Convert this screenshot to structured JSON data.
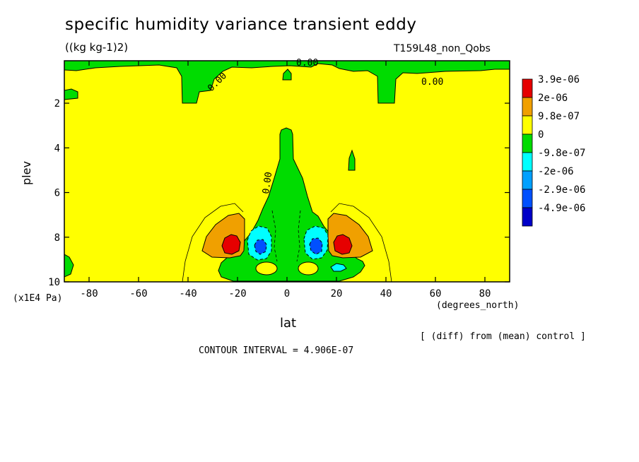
{
  "title": "specific humidity variance transient eddy",
  "units": "((kg kg-1)2)",
  "run_label": "T159L48_non_Qobs",
  "diff_note": "[ (diff) from (mean) control ]",
  "contour_interval": "CONTOUR INTERVAL = 4.906E-07",
  "chart_data": {
    "type": "contour",
    "xlabel": "lat",
    "xunit": "(degrees_north)",
    "ylabel": "plev",
    "yunit": "(x1E4 Pa)",
    "xlim": [
      -90,
      90
    ],
    "ylim": [
      10,
      0.1
    ],
    "x_ticks": [
      -80,
      -60,
      -40,
      -20,
      0,
      20,
      40,
      60,
      80
    ],
    "x_tick_labels": [
      "-80",
      "-60",
      "-40",
      "-20",
      "0",
      "20",
      "40",
      "60",
      "80"
    ],
    "y_ticks": [
      2,
      4,
      6,
      8,
      10
    ],
    "y_tick_labels": [
      "2",
      "4",
      "6",
      "8",
      "10"
    ],
    "contour_labels": [
      "0.00",
      "0.00",
      "0.00",
      "0.00"
    ],
    "colorbar": {
      "labels": [
        "3.9e-06",
        "2e-06",
        "9.8e-07",
        "0",
        "-9.8e-07",
        "-2e-06",
        "-2.9e-06",
        "-4.9e-06"
      ],
      "colors": [
        "#e60000",
        "#f0a000",
        "#ffff00",
        "#00dc00",
        "#00ffff",
        "#00a0ff",
        "#0050ff",
        "#0000c8"
      ]
    },
    "features": [
      {
        "kind": "max",
        "lat": -23,
        "plev": 8.3,
        "level": "3.9e-06"
      },
      {
        "kind": "max",
        "lat": 23,
        "plev": 8.3,
        "level": "3.9e-06"
      },
      {
        "kind": "min",
        "lat": -11,
        "plev": 8.4,
        "level": "-4.9e-06"
      },
      {
        "kind": "min",
        "lat": 11,
        "plev": 8.4,
        "level": "-4.9e-06"
      }
    ]
  }
}
